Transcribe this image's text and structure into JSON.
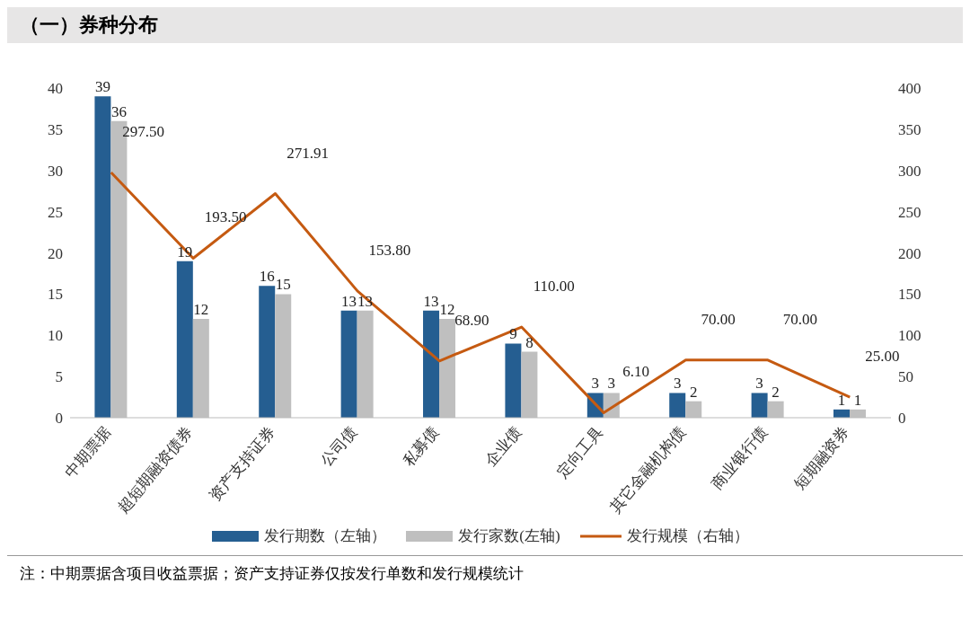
{
  "chart_data": {
    "type": "bar",
    "title": "（一）券种分布",
    "categories": [
      "中期票据",
      "超短期融资债券",
      "资产支持证券",
      "公司债",
      "私募债",
      "企业债",
      "定向工具",
      "其它金融机构债",
      "商业银行债",
      "短期融资券"
    ],
    "series": [
      {
        "name": "发行期数（左轴）",
        "color": "#255e91",
        "values": [
          39,
          19,
          16,
          13,
          13,
          9,
          3,
          3,
          3,
          1
        ],
        "value_labels": [
          "39",
          "19",
          "16",
          "13",
          "13",
          "9",
          "3",
          "3",
          "3",
          "1"
        ]
      },
      {
        "name": "发行家数(左轴)",
        "color": "#bfbfbf",
        "values": [
          36,
          12,
          15,
          13,
          12,
          8,
          3,
          2,
          2,
          1
        ],
        "value_labels": [
          "36",
          "12",
          "15",
          "13",
          "12",
          "8",
          "3",
          "2",
          "2",
          "1"
        ]
      },
      {
        "name": "发行规模（右轴）",
        "type": "line",
        "axis": "y2",
        "color": "#c55a11",
        "values": [
          297.5,
          193.5,
          271.91,
          153.8,
          68.9,
          110,
          6.1,
          70,
          70,
          25
        ],
        "value_labels": [
          "297.50",
          "193.50",
          "271.91",
          "153.80",
          "68.90",
          "110.00",
          "6.10",
          "70.00",
          "70.00",
          "25.00"
        ]
      }
    ],
    "ylim": [
      0,
      40
    ],
    "yticks": [
      0,
      5,
      10,
      15,
      20,
      25,
      30,
      35,
      40
    ],
    "y2lim": [
      0,
      400
    ],
    "y2ticks": [
      0,
      50,
      100,
      150,
      200,
      250,
      300,
      350,
      400
    ],
    "grid": false,
    "legend": "bottom",
    "marker": "none",
    "annotations": [
      "注：中期票据含项目收益票据；资产支持证券仅按发行单数和发行规模统计"
    ]
  }
}
